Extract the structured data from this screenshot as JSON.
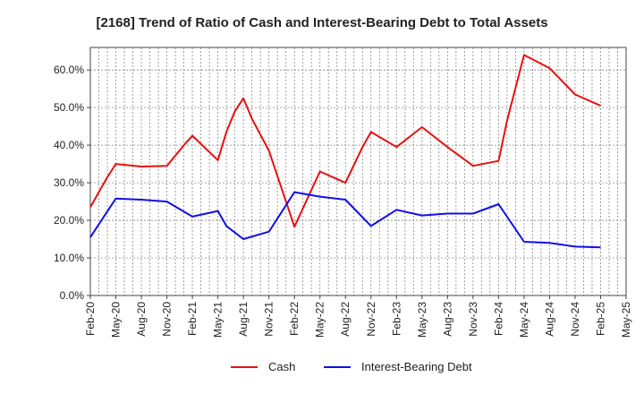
{
  "chart_data": {
    "type": "line",
    "title": "[2168]  Trend of Ratio of Cash and Interest-Bearing Debt to Total Assets",
    "xlabel": "",
    "ylabel": "",
    "x_tick_labels": [
      "Feb-20",
      "May-20",
      "Aug-20",
      "Nov-20",
      "Feb-21",
      "May-21",
      "Aug-21",
      "Nov-21",
      "Feb-22",
      "May-22",
      "Aug-22",
      "Nov-22",
      "Feb-23",
      "May-23",
      "Aug-23",
      "Nov-23",
      "Feb-24",
      "May-24",
      "Aug-24",
      "Nov-24",
      "Feb-25",
      "May-25"
    ],
    "y_tick_labels": [
      "0.0%",
      "10.0%",
      "20.0%",
      "30.0%",
      "40.0%",
      "50.0%",
      "60.0%"
    ],
    "ylim": [
      0,
      66
    ],
    "y_ticks": [
      0,
      10,
      20,
      30,
      40,
      50,
      60
    ],
    "grid": true,
    "legend_position": "bottom-center",
    "x": [
      "Feb-20",
      "Mar-20",
      "Apr-20",
      "May-20",
      "Jun-20",
      "Jul-20",
      "Aug-20",
      "Sep-20",
      "Oct-20",
      "Nov-20",
      "Dec-20",
      "Jan-21",
      "Feb-21",
      "Mar-21",
      "Apr-21",
      "May-21",
      "Jun-21",
      "Jul-21",
      "Aug-21",
      "Sep-21",
      "Oct-21",
      "Nov-21",
      "Dec-21",
      "Jan-22",
      "Feb-22",
      "Mar-22",
      "Apr-22",
      "May-22",
      "Jun-22",
      "Jul-22",
      "Aug-22",
      "Sep-22",
      "Oct-22",
      "Nov-22",
      "Dec-22",
      "Jan-23",
      "Feb-23",
      "Mar-23",
      "Apr-23",
      "May-23",
      "Jun-23",
      "Jul-23",
      "Aug-23",
      "Sep-23",
      "Oct-23",
      "Nov-23",
      "Dec-23",
      "Jan-24",
      "Feb-24",
      "Mar-24",
      "Apr-24",
      "May-24",
      "Jun-24",
      "Jul-24",
      "Aug-24",
      "Sep-24",
      "Oct-24",
      "Nov-24",
      "Dec-24",
      "Jan-25",
      "Feb-25",
      "Mar-25",
      "Apr-25",
      "May-25"
    ],
    "series": [
      {
        "name": "Cash",
        "color": "#e8100f",
        "points": [
          [
            "Feb-20",
            23.5
          ],
          [
            "Apr-20",
            31.5
          ],
          [
            "May-20",
            35.0
          ],
          [
            "Aug-20",
            34.3
          ],
          [
            "Nov-20",
            34.5
          ],
          [
            "Jan-21",
            40.0
          ],
          [
            "Feb-21",
            42.5
          ],
          [
            "May-21",
            36.0
          ],
          [
            "Jun-21",
            43.5
          ],
          [
            "Jul-21",
            49.0
          ],
          [
            "Aug-21",
            52.5
          ],
          [
            "Sep-21",
            47.0
          ],
          [
            "Nov-21",
            38.5
          ],
          [
            "Feb-22",
            18.3
          ],
          [
            "May-22",
            33.0
          ],
          [
            "Aug-22",
            30.0
          ],
          [
            "Oct-22",
            39.5
          ],
          [
            "Nov-22",
            43.5
          ],
          [
            "Feb-23",
            39.5
          ],
          [
            "May-23",
            44.8
          ],
          [
            "Aug-23",
            39.5
          ],
          [
            "Nov-23",
            34.5
          ],
          [
            "Feb-24",
            35.8
          ],
          [
            "Mar-24",
            46.5
          ],
          [
            "May-24",
            64.0
          ],
          [
            "Aug-24",
            60.5
          ],
          [
            "Nov-24",
            53.5
          ],
          [
            "Feb-25",
            50.5
          ]
        ]
      },
      {
        "name": "Interest-Bearing Debt",
        "color": "#1010e8",
        "points": [
          [
            "Feb-20",
            15.5
          ],
          [
            "May-20",
            25.8
          ],
          [
            "Aug-20",
            25.5
          ],
          [
            "Nov-20",
            25.0
          ],
          [
            "Feb-21",
            21.0
          ],
          [
            "May-21",
            22.5
          ],
          [
            "Jun-21",
            18.5
          ],
          [
            "Aug-21",
            15.0
          ],
          [
            "Nov-21",
            17.0
          ],
          [
            "Feb-22",
            27.5
          ],
          [
            "May-22",
            26.3
          ],
          [
            "Aug-22",
            25.5
          ],
          [
            "Nov-22",
            18.5
          ],
          [
            "Feb-23",
            22.8
          ],
          [
            "May-23",
            21.3
          ],
          [
            "Aug-23",
            21.8
          ],
          [
            "Nov-23",
            21.8
          ],
          [
            "Feb-24",
            24.3
          ],
          [
            "May-24",
            14.3
          ],
          [
            "Aug-24",
            14.0
          ],
          [
            "Nov-24",
            13.0
          ],
          [
            "Feb-25",
            12.8
          ]
        ]
      }
    ]
  }
}
